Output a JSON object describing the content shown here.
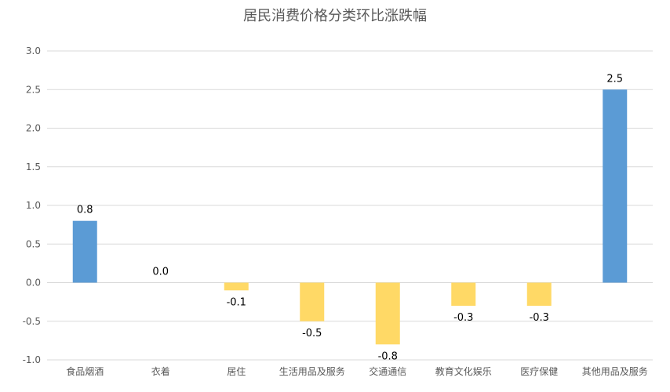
{
  "chart_data": {
    "type": "bar",
    "title": "居民消费价格分类环比涨跌幅",
    "categories": [
      "食品烟酒",
      "衣着",
      "居住",
      "生活用品及服务",
      "交通通信",
      "教育文化娱乐",
      "医疗保健",
      "其他用品及服务"
    ],
    "values": [
      0.8,
      0.0,
      -0.1,
      -0.5,
      -0.8,
      -0.3,
      -0.3,
      2.5
    ],
    "data_labels": [
      "0.8",
      "0.0",
      "-0.1",
      "-0.5",
      "-0.8",
      "-0.3",
      "-0.3",
      "2.5"
    ],
    "y_ticks": [
      "3.0",
      "2.5",
      "2.0",
      "1.5",
      "1.0",
      "0.5",
      "0.0",
      "-0.5",
      "-1.0"
    ],
    "ylim": [
      -1.0,
      3.0
    ],
    "grid": true,
    "legend": "none",
    "colors": {
      "positive": "#5B9BD5",
      "negative": "#FFD966",
      "grid": "#D9D9D9",
      "text": "#595959"
    }
  }
}
